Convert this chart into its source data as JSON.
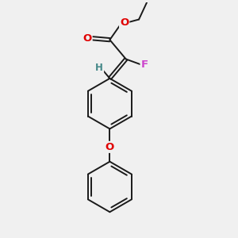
{
  "bg_color": "#f0f0f0",
  "bond_color": "#1a1a1a",
  "bond_width": 1.4,
  "dbo": 0.055,
  "atom_colors": {
    "O": "#e00000",
    "F": "#cc44cc",
    "H": "#448888",
    "C": "#1a1a1a"
  },
  "font_size": 9.5,
  "fig_size": [
    3.0,
    3.0
  ],
  "dpi": 100,
  "xlim": [
    -1.6,
    2.2
  ],
  "ylim": [
    -5.8,
    1.8
  ]
}
